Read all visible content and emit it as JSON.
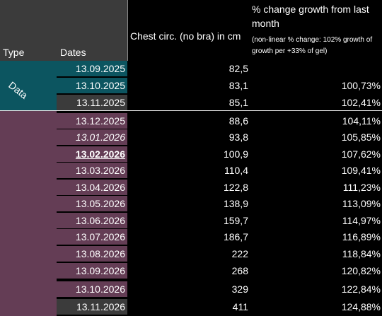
{
  "header": {
    "type": "Type",
    "dates": "Dates",
    "chest": "Chest circ. (no bra) in cm",
    "pct_main": "% change growth from last month",
    "pct_note": "(non-linear % change: 102% growth of growth per +33% of gel)"
  },
  "type_labels": {
    "data": "Data"
  },
  "colors": {
    "teal": "#0c5560",
    "plum": "#643d55",
    "grey": "#3b3b3b"
  },
  "rows": [
    {
      "date": "13.09.2025",
      "chest": "82,5",
      "pct": ""
    },
    {
      "date": "13.10.2025",
      "chest": "83,1",
      "pct": "100,73%"
    },
    {
      "date": "13.11.2025",
      "chest": "85,1",
      "pct": "102,41%"
    },
    {
      "date": "13.12.2025",
      "chest": "88,6",
      "pct": "104,11%"
    },
    {
      "date": "13.01.2026",
      "chest": "93,8",
      "pct": "105,85%"
    },
    {
      "date": "13.02.2026",
      "chest": "100,9",
      "pct": "107,62%"
    },
    {
      "date": "13.03.2026",
      "chest": "110,4",
      "pct": "109,41%"
    },
    {
      "date": "13.04.2026",
      "chest": "122,8",
      "pct": "111,23%"
    },
    {
      "date": "13.05.2026",
      "chest": "138,9",
      "pct": "113,09%"
    },
    {
      "date": "13.06.2026",
      "chest": "159,7",
      "pct": "114,97%"
    },
    {
      "date": "13.07.2026",
      "chest": "186,7",
      "pct": "116,89%"
    },
    {
      "date": "13.08.2026",
      "chest": "222",
      "pct": "118,84%"
    },
    {
      "date": "13.09.2026",
      "chest": "268",
      "pct": "120,82%"
    },
    {
      "date": "13.10.2026",
      "chest": "329",
      "pct": "122,84%"
    },
    {
      "date": "13.11.2026",
      "chest": "411",
      "pct": "124,88%"
    }
  ]
}
